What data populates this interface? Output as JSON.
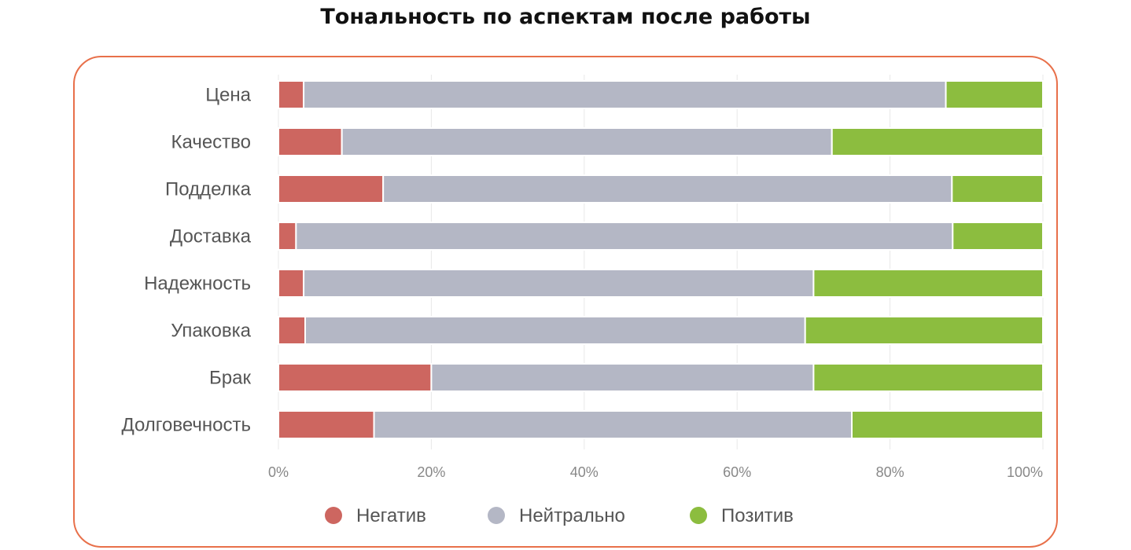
{
  "title": "Тональность по аспектам после работы",
  "chart_data": {
    "type": "bar",
    "orientation": "horizontal",
    "stacked": "percent",
    "categories": [
      "Цена",
      "Качество",
      "Подделка",
      "Доставка",
      "Надежность",
      "Упаковка",
      "Брак",
      "Долговечность"
    ],
    "series": [
      {
        "name": "Негатив",
        "color": "#cd6660",
        "values": [
          3.3,
          8.3,
          13.7,
          2.3,
          3.3,
          3.5,
          20.0,
          12.5
        ]
      },
      {
        "name": "Нейтрально",
        "color": "#b4b7c5",
        "values": [
          84.0,
          64.1,
          74.4,
          85.9,
          66.7,
          65.4,
          50.0,
          62.5
        ]
      },
      {
        "name": "Позитив",
        "color": "#8cbd3f",
        "values": [
          12.7,
          27.6,
          11.9,
          11.8,
          30.0,
          31.1,
          30.0,
          25.0
        ]
      }
    ],
    "xlim": [
      0,
      100
    ],
    "x_ticks": [
      "0%",
      "20%",
      "40%",
      "60%",
      "80%",
      "100%"
    ],
    "grid": true,
    "legend_position": "bottom"
  }
}
